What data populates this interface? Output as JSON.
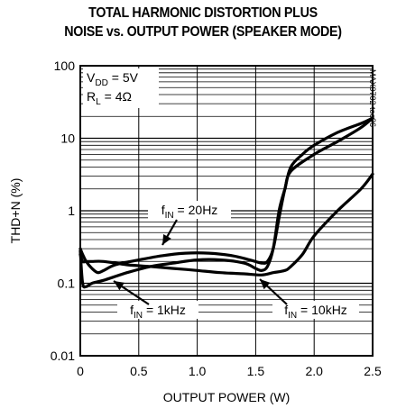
{
  "chart_data": {
    "type": "line",
    "title_line1": "TOTAL HARMONIC DISTORTION PLUS",
    "title_line2": "NOISE vs. OUTPUT POWER (SPEAKER MODE)",
    "xlabel": "OUTPUT POWER (W)",
    "ylabel": "THD+N (%)",
    "xlim": [
      0,
      2.5
    ],
    "ylim": [
      0.01,
      100
    ],
    "yscale": "log",
    "x_ticks": [
      "0",
      "0.5",
      "1.0",
      "1.5",
      "2.0",
      "2.5"
    ],
    "y_ticks": [
      "0.01",
      "0.1",
      "1",
      "10",
      "100"
    ],
    "grid": true,
    "conditions": [
      {
        "name": "V",
        "sub": "DD",
        "value": " = 5V"
      },
      {
        "name": "R",
        "sub": "L",
        "value": " = 4Ω"
      }
    ],
    "watermark": "MAX9702 toc06",
    "series": [
      {
        "name": "fIN = 20Hz",
        "label": {
          "prefix": "f",
          "sub": "IN",
          "value": " = 20Hz"
        },
        "x": [
          0.0,
          0.02,
          0.05,
          0.1,
          0.15,
          0.2,
          0.3,
          0.5,
          0.7,
          0.9,
          1.1,
          1.3,
          1.45,
          1.55,
          1.6,
          1.65,
          1.7,
          1.75,
          1.8,
          1.9,
          2.0,
          2.2,
          2.4,
          2.5
        ],
        "y": [
          0.3,
          0.25,
          0.2,
          0.16,
          0.14,
          0.15,
          0.18,
          0.21,
          0.24,
          0.26,
          0.26,
          0.24,
          0.21,
          0.19,
          0.2,
          0.3,
          0.8,
          2.0,
          4.0,
          6.0,
          8.0,
          12.0,
          16.0,
          19.0
        ]
      },
      {
        "name": "fIN = 1kHz",
        "label": {
          "prefix": "f",
          "sub": "IN",
          "value": " = 1kHz"
        },
        "x": [
          0.0,
          0.02,
          0.05,
          0.1,
          0.2,
          0.4,
          0.6,
          0.8,
          1.0,
          1.2,
          1.4,
          1.5,
          1.55,
          1.6,
          1.65,
          1.7,
          1.75,
          1.8,
          2.0,
          2.2,
          2.4,
          2.5
        ],
        "y": [
          0.28,
          0.1,
          0.09,
          0.1,
          0.11,
          0.14,
          0.17,
          0.19,
          0.21,
          0.21,
          0.19,
          0.16,
          0.15,
          0.17,
          0.3,
          1.0,
          2.0,
          3.5,
          6.0,
          9.0,
          14.0,
          19.0
        ]
      },
      {
        "name": "fIN = 10kHz",
        "label": {
          "prefix": "f",
          "sub": "IN",
          "value": " = 10kHz"
        },
        "x": [
          0.0,
          0.02,
          0.05,
          0.1,
          0.2,
          0.4,
          0.6,
          0.8,
          1.0,
          1.2,
          1.4,
          1.55,
          1.65,
          1.75,
          1.8,
          1.9,
          2.0,
          2.2,
          2.4,
          2.5
        ],
        "y": [
          0.25,
          0.2,
          0.2,
          0.2,
          0.2,
          0.18,
          0.17,
          0.16,
          0.15,
          0.14,
          0.135,
          0.13,
          0.14,
          0.15,
          0.17,
          0.25,
          0.45,
          1.0,
          2.0,
          3.2
        ]
      }
    ]
  }
}
